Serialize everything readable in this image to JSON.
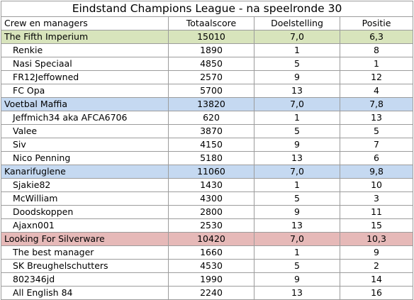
{
  "title": "Eindstand Champions League - na speelronde 30",
  "headers": [
    "Crew en managers",
    "Totaalscore",
    "Doelstelling",
    "Positie"
  ],
  "teams": [
    {
      "name": "The Fifth Imperium",
      "score": "15010",
      "goal": "7,0",
      "position": "6,3",
      "color": "#d8e4bc",
      "members": [
        {
          "name": "Renkie",
          "score": "1890",
          "goal": "1",
          "position": "8"
        },
        {
          "name": "Nasi Speciaal",
          "score": "4850",
          "goal": "5",
          "position": "1"
        },
        {
          "name": "FR12Jeffowned",
          "score": "2570",
          "goal": "9",
          "position": "12"
        },
        {
          "name": "FC Opa",
          "score": "5700",
          "goal": "13",
          "position": "4"
        }
      ]
    },
    {
      "name": "Voetbal Maffia",
      "score": "13820",
      "goal": "7,0",
      "position": "7,8",
      "color": "#c5d9f1",
      "members": [
        {
          "name": "Jeffmich34 aka AFCA6706",
          "score": "620",
          "goal": "1",
          "position": "13"
        },
        {
          "name": "Valee",
          "score": "3870",
          "goal": "5",
          "position": "5"
        },
        {
          "name": "Siv",
          "score": "4150",
          "goal": "9",
          "position": "7"
        },
        {
          "name": "Nico Penning",
          "score": "5180",
          "goal": "13",
          "position": "6"
        }
      ]
    },
    {
      "name": "Kanarifuglene",
      "score": "11060",
      "goal": "7,0",
      "position": "9,8",
      "color": "#c5d9f1",
      "members": [
        {
          "name": "Sjakie82",
          "score": "1430",
          "goal": "1",
          "position": "10"
        },
        {
          "name": "McWilliam",
          "score": "4300",
          "goal": "5",
          "position": "3"
        },
        {
          "name": "Doodskoppen",
          "score": "2800",
          "goal": "9",
          "position": "11"
        },
        {
          "name": "Ajaxn001",
          "score": "2530",
          "goal": "13",
          "position": "15"
        }
      ]
    },
    {
      "name": "Looking For Silverware",
      "score": "10420",
      "goal": "7,0",
      "position": "10,3",
      "color": "#e6b9b8",
      "members": [
        {
          "name": "The best manager",
          "score": "1660",
          "goal": "1",
          "position": "9"
        },
        {
          "name": "SK Breughelschutters",
          "score": "4530",
          "goal": "5",
          "position": "2"
        },
        {
          "name": "802346jd",
          "score": "1990",
          "goal": "9",
          "position": "14"
        },
        {
          "name": "All English 84",
          "score": "2240",
          "goal": "13",
          "position": "16"
        }
      ]
    }
  ]
}
